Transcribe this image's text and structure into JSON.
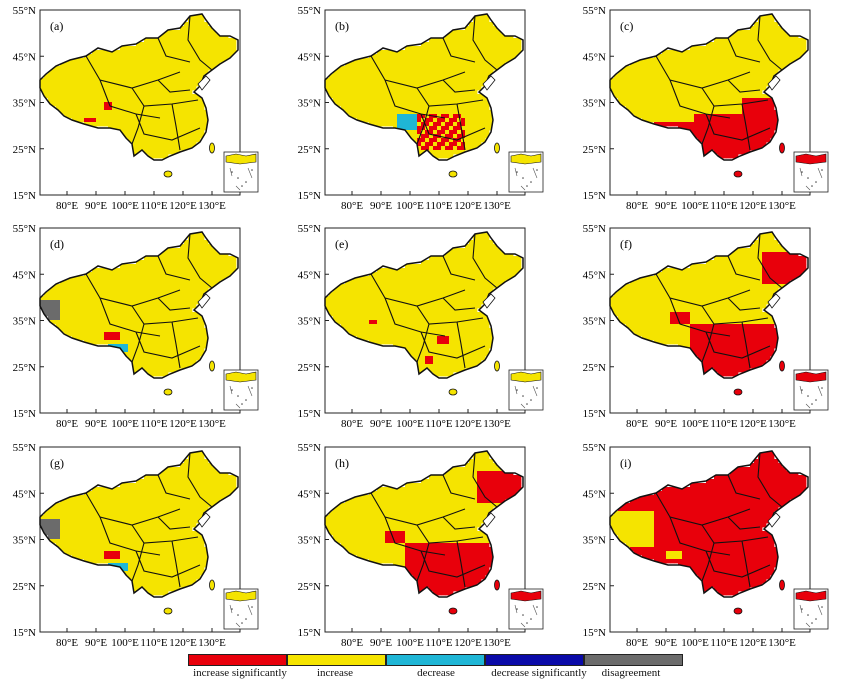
{
  "colors": {
    "increase_significantly": "#e8000b",
    "increase": "#f5e400",
    "decrease": "#1fb6d6",
    "decrease_significantly": "#0a0aa8",
    "disagreement": "#6b6b6b",
    "border": "#111111"
  },
  "latitude_ticks": [
    "15°N",
    "25°N",
    "35°N",
    "45°N",
    "55°N"
  ],
  "longitude_ticks": [
    "80°E",
    "90°E",
    "100°E",
    "110°E",
    "120°E",
    "130°E"
  ],
  "panels": [
    {
      "label": "(a)",
      "pattern": "minor_red_sw"
    },
    {
      "label": "(b)",
      "pattern": "red_southwest"
    },
    {
      "label": "(c)",
      "pattern": "red_south"
    },
    {
      "label": "(d)",
      "pattern": "mixed_west"
    },
    {
      "label": "(e)",
      "pattern": "sparse_red"
    },
    {
      "label": "(f)",
      "pattern": "red_southeast_large"
    },
    {
      "label": "(g)",
      "pattern": "mixed_west"
    },
    {
      "label": "(h)",
      "pattern": "red_southeast_large"
    },
    {
      "label": "(i)",
      "pattern": "red_nearly_all"
    }
  ],
  "legend": {
    "items": [
      {
        "label": "increase significantly",
        "color_key": "increase_significantly"
      },
      {
        "label": "increase",
        "color_key": "increase"
      },
      {
        "label": "decrease",
        "color_key": "decrease"
      },
      {
        "label": "decrease significantly",
        "color_key": "decrease_significantly"
      },
      {
        "label": "disagreement",
        "color_key": "disagreement"
      }
    ]
  }
}
